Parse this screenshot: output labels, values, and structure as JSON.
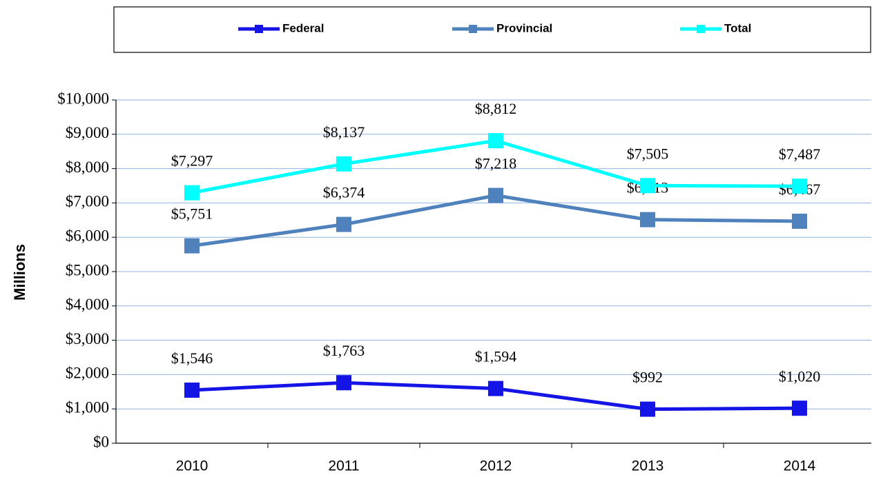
{
  "chart_data": {
    "type": "line",
    "y_label": "Millions",
    "categories": [
      "2010",
      "2011",
      "2012",
      "2013",
      "2014"
    ],
    "series": [
      {
        "name": "Federal",
        "color": "#1414e6",
        "values": [
          1546,
          1763,
          1594,
          992,
          1020
        ],
        "value_labels": [
          "$1,546",
          "$1,763",
          "$1,594",
          "$992",
          "$1,020"
        ]
      },
      {
        "name": "Provincial",
        "color": "#4f81bd",
        "values": [
          5751,
          6374,
          7218,
          6513,
          6467
        ],
        "value_labels": [
          "$5,751",
          "$6,374",
          "$7,218",
          "$6,513",
          "$6,467"
        ]
      },
      {
        "name": "Total",
        "color": "#00ffff",
        "values": [
          7297,
          8137,
          8812,
          7505,
          7487
        ],
        "value_labels": [
          "$7,297",
          "$8,137",
          "$8,812",
          "$7,505",
          "$7,487"
        ]
      }
    ],
    "ylim": [
      0,
      10000
    ],
    "yticks": [
      {
        "value": 0,
        "label": "$0"
      },
      {
        "value": 1000,
        "label": "$1,000"
      },
      {
        "value": 2000,
        "label": "$2,000"
      },
      {
        "value": 3000,
        "label": "$3,000"
      },
      {
        "value": 4000,
        "label": "$4,000"
      },
      {
        "value": 5000,
        "label": "$5,000"
      },
      {
        "value": 6000,
        "label": "$6,000"
      },
      {
        "value": 7000,
        "label": "$7,000"
      },
      {
        "value": 8000,
        "label": "$8,000"
      },
      {
        "value": 9000,
        "label": "$9,000"
      },
      {
        "value": 10000,
        "label": "$10,000"
      }
    ],
    "grid": true,
    "legend": "top"
  }
}
